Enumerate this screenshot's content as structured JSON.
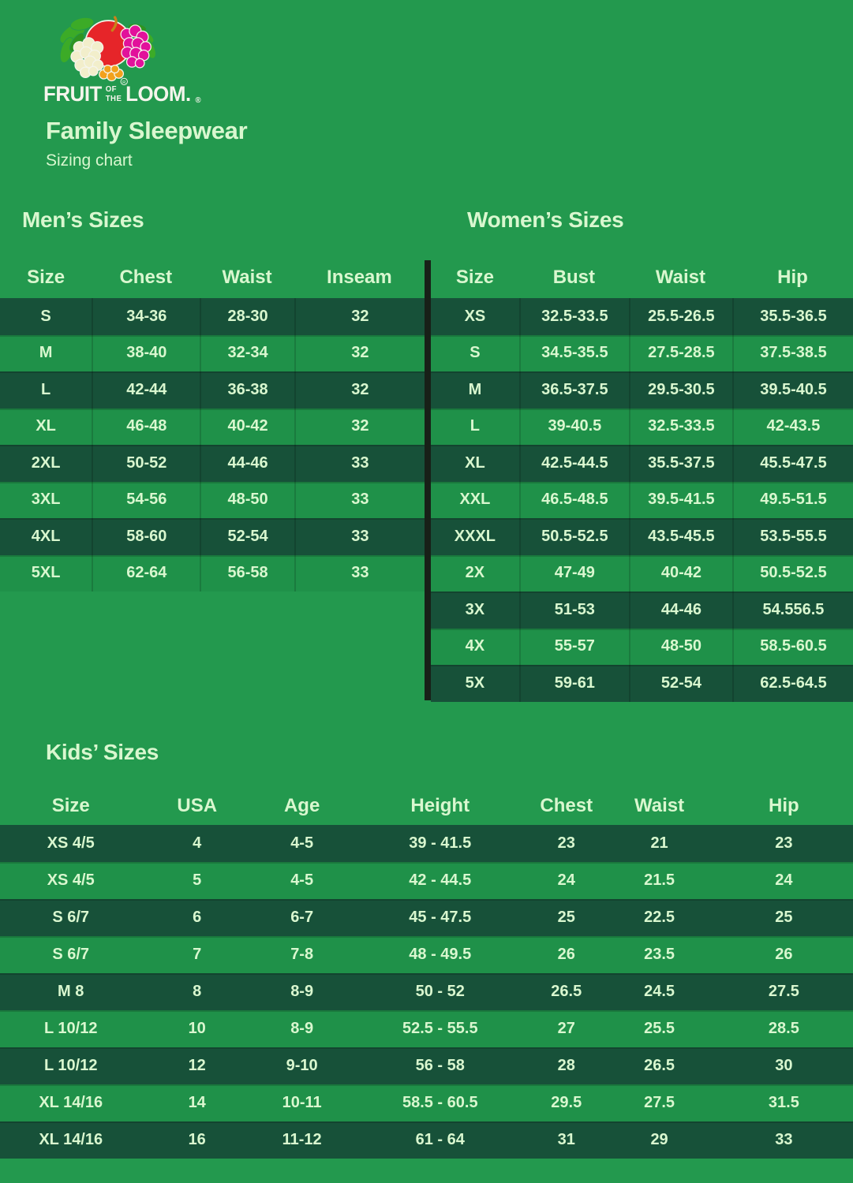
{
  "brand": {
    "fruit": "FRUIT",
    "of": "OF",
    "the": "THE",
    "loom": "LOOM.",
    "reg": "®"
  },
  "header": {
    "title": "Family Sleepwear",
    "subtitle": "Sizing chart"
  },
  "colors": {
    "background": "#23994E",
    "row_dark": "#175139",
    "row_light": "#1F9149",
    "text_pale_green": "#D9F7CF",
    "divider_black": "#182018",
    "logo_apple_red": "#E62529",
    "logo_leaf_green": "#3CAB27",
    "logo_grape_magenta": "#E2119B",
    "logo_grape_orange": "#F2A11C",
    "logo_grape_cream": "#F2EECB",
    "logo_wordmark_white": "#F5F5EC"
  },
  "mens": {
    "heading": "Men’s Sizes",
    "columns": [
      "Size",
      "Chest",
      "Waist",
      "Inseam"
    ],
    "rows": [
      [
        "S",
        "34-36",
        "28-30",
        "32"
      ],
      [
        "M",
        "38-40",
        "32-34",
        "32"
      ],
      [
        "L",
        "42-44",
        "36-38",
        "32"
      ],
      [
        "XL",
        "46-48",
        "40-42",
        "32"
      ],
      [
        "2XL",
        "50-52",
        "44-46",
        "33"
      ],
      [
        "3XL",
        "54-56",
        "48-50",
        "33"
      ],
      [
        "4XL",
        "58-60",
        "52-54",
        "33"
      ],
      [
        "5XL",
        "62-64",
        "56-58",
        "33"
      ]
    ]
  },
  "womens": {
    "heading": "Women’s Sizes",
    "columns": [
      "Size",
      "Bust",
      "Waist",
      "Hip"
    ],
    "rows": [
      [
        "XS",
        "32.5-33.5",
        "25.5-26.5",
        "35.5-36.5"
      ],
      [
        "S",
        "34.5-35.5",
        "27.5-28.5",
        "37.5-38.5"
      ],
      [
        "M",
        "36.5-37.5",
        "29.5-30.5",
        "39.5-40.5"
      ],
      [
        "L",
        "39-40.5",
        "32.5-33.5",
        "42-43.5"
      ],
      [
        "XL",
        "42.5-44.5",
        "35.5-37.5",
        "45.5-47.5"
      ],
      [
        "XXL",
        "46.5-48.5",
        "39.5-41.5",
        "49.5-51.5"
      ],
      [
        "XXXL",
        "50.5-52.5",
        "43.5-45.5",
        "53.5-55.5"
      ],
      [
        "2X",
        "47-49",
        "40-42",
        "50.5-52.5"
      ],
      [
        "3X",
        "51-53",
        "44-46",
        "54.556.5"
      ],
      [
        "4X",
        "55-57",
        "48-50",
        "58.5-60.5"
      ],
      [
        "5X",
        "59-61",
        "52-54",
        "62.5-64.5"
      ]
    ]
  },
  "kids": {
    "heading": "Kids’ Sizes",
    "columns": [
      "Size",
      "USA",
      "Age",
      "Height",
      "Chest",
      "Waist",
      "Hip"
    ],
    "rows": [
      [
        "XS 4/5",
        "4",
        "4-5",
        "39 - 41.5",
        "23",
        "21",
        "23"
      ],
      [
        "XS 4/5",
        "5",
        "4-5",
        "42 - 44.5",
        "24",
        "21.5",
        "24"
      ],
      [
        "S 6/7",
        "6",
        "6-7",
        "45 - 47.5",
        "25",
        "22.5",
        "25"
      ],
      [
        "S 6/7",
        "7",
        "7-8",
        "48 - 49.5",
        "26",
        "23.5",
        "26"
      ],
      [
        "M 8",
        "8",
        "8-9",
        "50 - 52",
        "26.5",
        "24.5",
        "27.5"
      ],
      [
        "L 10/12",
        "10",
        "8-9",
        "52.5 - 55.5",
        "27",
        "25.5",
        "28.5"
      ],
      [
        "L 10/12",
        "12",
        "9-10",
        "56 - 58",
        "28",
        "26.5",
        "30"
      ],
      [
        "XL 14/16",
        "14",
        "10-11",
        "58.5 - 60.5",
        "29.5",
        "27.5",
        "31.5"
      ],
      [
        "XL 14/16",
        "16",
        "11-12",
        "61 - 64",
        "31",
        "29",
        "33"
      ]
    ]
  }
}
